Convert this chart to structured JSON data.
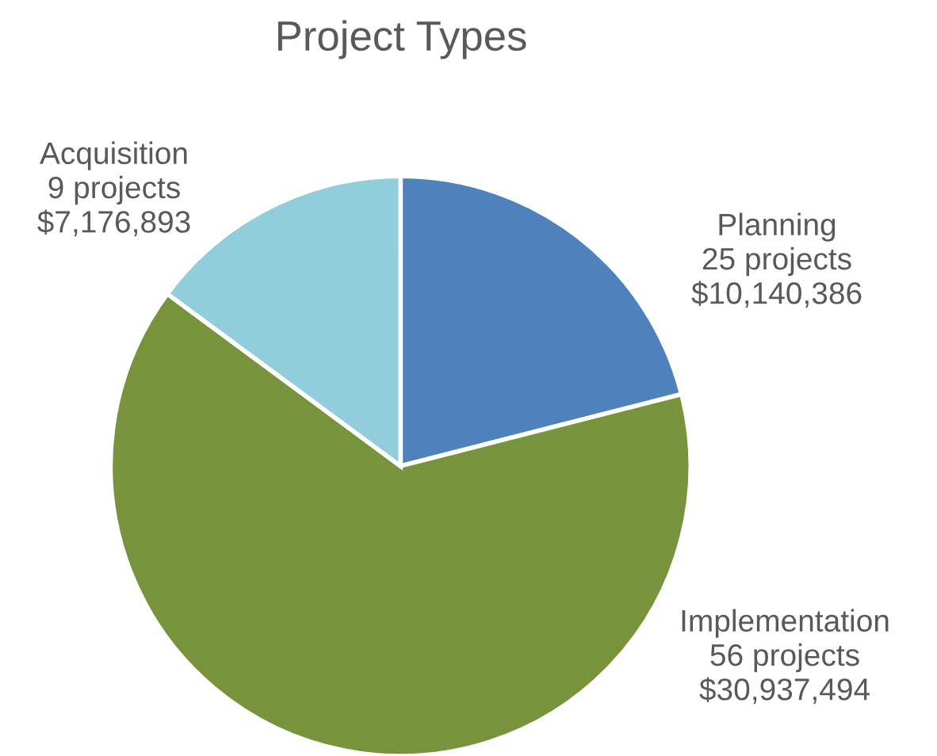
{
  "chart_data": {
    "type": "pie",
    "title": "Project Types",
    "categories": [
      "Planning",
      "Implementation",
      "Acquisition"
    ],
    "values": [
      10140386,
      30937494,
      7176893
    ],
    "colors": [
      "#4f81bd",
      "#77933c",
      "#92cddc"
    ],
    "value_labels": [
      "25 projects\n$10,140,386",
      "56 projects\n$30,937,494",
      "9 projects\n$7,176,893"
    ],
    "legend": false
  }
}
